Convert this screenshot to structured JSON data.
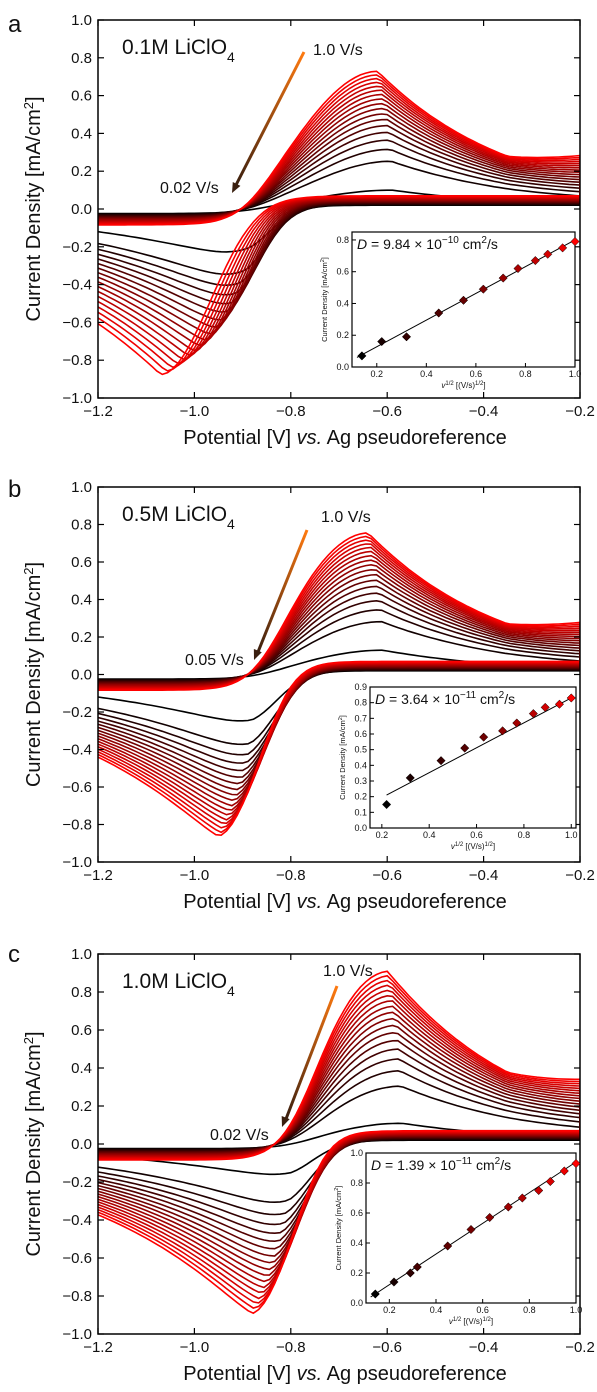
{
  "figure": {
    "x_axis_label": "Potential [V] vs. Ag pseudoreference",
    "x_axis_label_parts": [
      "Potential [V] ",
      "vs.",
      " Ag pseudoreference"
    ],
    "y_axis_label": "Current Density [mA/cm2]",
    "y_axis_label_parts": [
      "Current Density [mA/cm",
      "2",
      "]"
    ],
    "colors": {
      "low_rate": "#000000",
      "mid_rate": "#8b0000",
      "high_rate": "#ff0000",
      "arrow_start": "#3a1f0f",
      "arrow_end": "#ff7a10",
      "axis": "#000000"
    }
  },
  "chart_data": [
    {
      "type": "line",
      "panel_letter": "a",
      "condition": "0.1M LiClO4",
      "condition_parts": [
        "0.1M LiClO",
        "4"
      ],
      "scan_rate_high_label": "1.0 V/s",
      "scan_rate_low_label": "0.02 V/s",
      "xlim": [
        -1.2,
        -0.2
      ],
      "ylim": [
        -1.0,
        1.0
      ],
      "x_ticks": [
        -1.2,
        -1.0,
        -0.8,
        -0.6,
        -0.4,
        -0.2
      ],
      "y_ticks": [
        -1.0,
        -0.8,
        -0.6,
        -0.4,
        -0.2,
        0.0,
        0.2,
        0.4,
        0.6,
        0.8,
        1.0
      ],
      "x_tick_labels": [
        "−1.2",
        "−1.0",
        "−0.8",
        "−0.6",
        "−0.4",
        "−0.2"
      ],
      "y_tick_labels": [
        "−1.0",
        "−0.8",
        "−0.6",
        "−0.4",
        "−0.2",
        "0.0",
        "0.2",
        "0.4",
        "0.6",
        "0.8",
        "1.0"
      ],
      "cv_curves": {
        "count": 18,
        "anodic_peak_potential": -0.62,
        "anodic_peak_current_min": 0.1,
        "anodic_peak_current_max": 0.73,
        "cathodic_peak_potential_min": -1.07,
        "cathodic_peak_potential_max": -0.88,
        "cathodic_peak_current_min": -0.3,
        "cathodic_peak_current_max": -0.88,
        "crossing_potential": -0.9
      },
      "inset": {
        "type": "scatter",
        "diffusion_label": "D = 9.84 × 10−10 cm2/s",
        "diffusion_parts": {
          "prefix": "D",
          "mantissa": " = 9.84 × 10",
          "exponent": "−10",
          "unit": " cm",
          "unit_exp": "2",
          "suffix": "/s"
        },
        "xlabel": "v1/2 [(V/s)1/2]",
        "xlabel_parts": [
          "v",
          "1/2",
          " [(V/s)",
          "1/2",
          "]"
        ],
        "ylabel": "Current Density [mA/cm2]",
        "ylabel_parts": [
          "Current Density [mA/cm",
          "2",
          "]"
        ],
        "xlim": [
          0.1,
          1.0
        ],
        "ylim": [
          0.0,
          0.85
        ],
        "x_ticks": [
          0.2,
          0.4,
          0.6,
          0.8,
          1.0
        ],
        "y_ticks": [
          0.0,
          0.2,
          0.4,
          0.6,
          0.8
        ],
        "x_tick_labels": [
          "0.2",
          "0.4",
          "0.6",
          "0.8",
          "1.0"
        ],
        "y_tick_labels": [
          "0.0",
          "0.2",
          "0.4",
          "0.6",
          "0.8"
        ],
        "x": [
          0.14,
          0.22,
          0.32,
          0.45,
          0.55,
          0.63,
          0.71,
          0.77,
          0.84,
          0.89,
          0.95,
          1.0
        ],
        "y": [
          0.07,
          0.16,
          0.19,
          0.34,
          0.42,
          0.49,
          0.56,
          0.62,
          0.67,
          0.71,
          0.75,
          0.79
        ],
        "fit_line": {
          "x": [
            0.12,
            1.0
          ],
          "y": [
            0.06,
            0.8
          ]
        }
      }
    },
    {
      "type": "line",
      "panel_letter": "b",
      "condition": "0.5M LiClO4",
      "condition_parts": [
        "0.5M LiClO",
        "4"
      ],
      "scan_rate_high_label": "1.0 V/s",
      "scan_rate_low_label": "0.05 V/s",
      "xlim": [
        -1.2,
        -0.2
      ],
      "ylim": [
        -1.0,
        1.0
      ],
      "x_ticks": [
        -1.2,
        -1.0,
        -0.8,
        -0.6,
        -0.4,
        -0.2
      ],
      "y_ticks": [
        -1.0,
        -0.8,
        -0.6,
        -0.4,
        -0.2,
        0.0,
        0.2,
        0.4,
        0.6,
        0.8,
        1.0
      ],
      "x_tick_labels": [
        "−1.2",
        "−1.0",
        "−0.8",
        "−0.6",
        "−0.4",
        "−0.2"
      ],
      "y_tick_labels": [
        "−1.0",
        "−0.8",
        "−0.6",
        "−0.4",
        "−0.2",
        "0.0",
        "0.2",
        "0.4",
        "0.6",
        "0.8",
        "1.0"
      ],
      "cv_curves": {
        "count": 18,
        "anodic_peak_potential": -0.64,
        "anodic_peak_current_min": 0.13,
        "anodic_peak_current_max": 0.76,
        "cathodic_peak_potential_min": -0.95,
        "cathodic_peak_potential_max": -0.88,
        "cathodic_peak_current_min": -0.3,
        "cathodic_peak_current_max": -0.9,
        "crossing_potential": -0.87
      },
      "inset": {
        "type": "scatter",
        "diffusion_label": "D = 3.64 × 10−11 cm2/s",
        "diffusion_parts": {
          "prefix": "D",
          "mantissa": " = 3.64 × 10",
          "exponent": "−11",
          "unit": " cm",
          "unit_exp": "2",
          "suffix": "/s"
        },
        "xlabel": "v1/2 [(V/s)1/2]",
        "xlabel_parts": [
          "v",
          "1/2",
          " [(V/s)",
          "1/2",
          "]"
        ],
        "ylabel": "Current Density [mA/cm2]",
        "ylabel_parts": [
          "Current Density [mA/cm",
          "2",
          "]"
        ],
        "xlim": [
          0.15,
          1.02
        ],
        "ylim": [
          0.0,
          0.9
        ],
        "x_ticks": [
          0.2,
          0.4,
          0.6,
          0.8,
          1.0
        ],
        "y_ticks": [
          0.0,
          0.1,
          0.2,
          0.3,
          0.4,
          0.5,
          0.6,
          0.7,
          0.8,
          0.9
        ],
        "x_tick_labels": [
          "0.2",
          "0.4",
          "0.6",
          "0.8",
          "1.0"
        ],
        "y_tick_labels": [
          "0.0",
          "0.1",
          "0.2",
          "0.3",
          "0.4",
          "0.5",
          "0.6",
          "0.7",
          "0.8",
          "0.9"
        ],
        "x": [
          0.22,
          0.32,
          0.45,
          0.55,
          0.63,
          0.71,
          0.77,
          0.84,
          0.89,
          0.95,
          1.0
        ],
        "y": [
          0.15,
          0.32,
          0.43,
          0.51,
          0.58,
          0.62,
          0.67,
          0.73,
          0.77,
          0.79,
          0.83
        ],
        "fit_line": {
          "x": [
            0.22,
            1.0
          ],
          "y": [
            0.21,
            0.83
          ]
        }
      }
    },
    {
      "type": "line",
      "panel_letter": "c",
      "condition": "1.0M LiClO4",
      "condition_parts": [
        "1.0M LiClO",
        "4"
      ],
      "scan_rate_high_label": "1.0 V/s",
      "scan_rate_low_label": "0.02 V/s",
      "xlim": [
        -1.2,
        -0.2
      ],
      "ylim": [
        -1.0,
        1.0
      ],
      "x_ticks": [
        -1.2,
        -1.0,
        -0.8,
        -0.6,
        -0.4,
        -0.2
      ],
      "y_ticks": [
        -1.0,
        -0.8,
        -0.6,
        -0.4,
        -0.2,
        0.0,
        0.2,
        0.4,
        0.6,
        0.8,
        1.0
      ],
      "x_tick_labels": [
        "−1.2",
        "−1.0",
        "−0.8",
        "−0.6",
        "−0.4",
        "−0.2"
      ],
      "y_tick_labels": [
        "−1.0",
        "−0.8",
        "−0.6",
        "−0.4",
        "−0.2",
        "0.0",
        "0.2",
        "0.4",
        "0.6",
        "0.8",
        "1.0"
      ],
      "cv_curves": {
        "count": 18,
        "anodic_peak_potential": -0.6,
        "anodic_peak_current_min": 0.11,
        "anodic_peak_current_max": 0.92,
        "cathodic_peak_potential_min": -0.88,
        "cathodic_peak_potential_max": -0.8,
        "cathodic_peak_current_min": -0.2,
        "cathodic_peak_current_max": -0.93,
        "crossing_potential": -0.8
      },
      "inset": {
        "type": "scatter",
        "diffusion_label": "D = 1.39 × 10−11 cm2/s",
        "diffusion_parts": {
          "prefix": "D",
          "mantissa": " = 1.39 × 10",
          "exponent": "−11",
          "unit": " cm",
          "unit_exp": "2",
          "suffix": "/s"
        },
        "xlabel": "v1/2 [(V/s)1/2]",
        "xlabel_parts": [
          "v",
          "1/2",
          " [(V/s)",
          "1/2",
          "]"
        ],
        "ylabel": "Current Density [mA/cm2]",
        "ylabel_parts": [
          "Current Density [mA/cm",
          "2",
          "]"
        ],
        "xlim": [
          0.1,
          1.0
        ],
        "ylim": [
          0.0,
          1.0
        ],
        "x_ticks": [
          0.2,
          0.4,
          0.6,
          0.8,
          1.0
        ],
        "y_ticks": [
          0.0,
          0.2,
          0.4,
          0.6,
          0.8,
          1.0
        ],
        "x_tick_labels": [
          "0.2",
          "0.4",
          "0.6",
          "0.8",
          "1.0"
        ],
        "y_tick_labels": [
          "0.0",
          "0.2",
          "0.4",
          "0.6",
          "0.8",
          "1.0"
        ],
        "x": [
          0.14,
          0.22,
          0.29,
          0.32,
          0.45,
          0.55,
          0.63,
          0.71,
          0.77,
          0.84,
          0.89,
          0.95,
          1.0
        ],
        "y": [
          0.06,
          0.14,
          0.2,
          0.24,
          0.38,
          0.49,
          0.57,
          0.64,
          0.7,
          0.75,
          0.81,
          0.88,
          0.93
        ],
        "fit_line": {
          "x": [
            0.12,
            1.0
          ],
          "y": [
            0.04,
            0.94
          ]
        }
      }
    }
  ]
}
